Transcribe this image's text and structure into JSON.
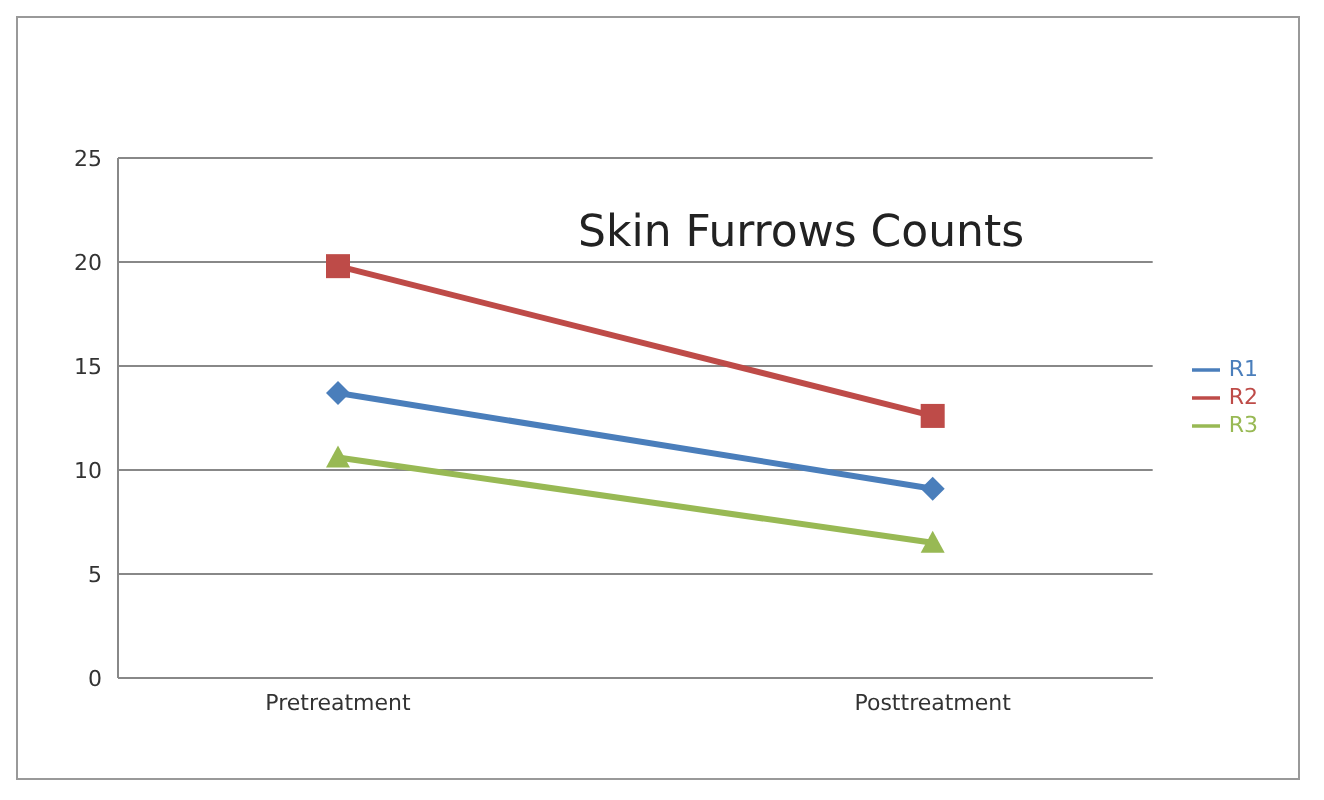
{
  "chart_data": {
    "type": "line",
    "title": "Skin Furrows Counts",
    "categories": [
      "Pretreatment",
      "Posttreatment"
    ],
    "series": [
      {
        "name": "R1",
        "color": "#4a7ebb",
        "values": [
          13.7,
          9.1
        ],
        "marker": "diamond"
      },
      {
        "name": "R2",
        "color": "#be4b48",
        "values": [
          19.8,
          12.6
        ],
        "marker": "square"
      },
      {
        "name": "R3",
        "color": "#98b954",
        "values": [
          10.6,
          6.5
        ],
        "marker": "triangle"
      }
    ],
    "ylim": [
      0,
      25
    ],
    "yticks": [
      0,
      5,
      10,
      15,
      20,
      25
    ],
    "grid": "y",
    "legend": "right"
  }
}
